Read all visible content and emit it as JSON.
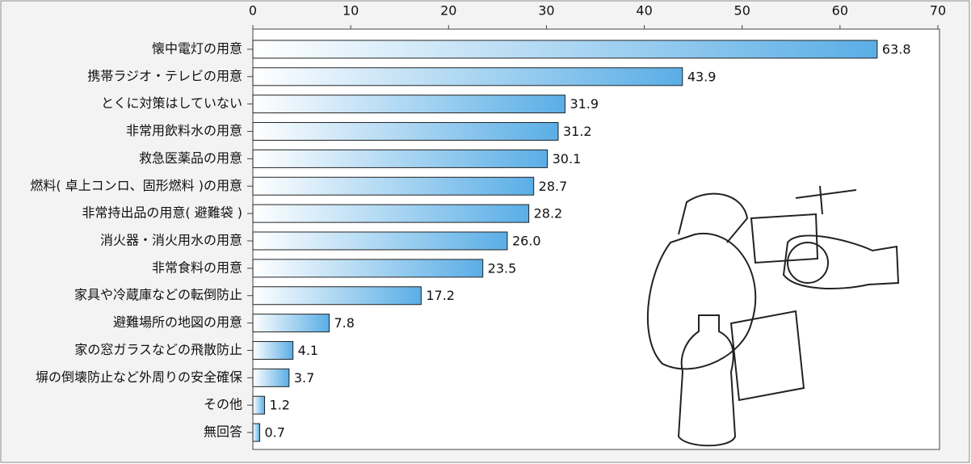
{
  "chart_data": {
    "type": "bar",
    "orientation": "horizontal",
    "categories": [
      "懐中電灯の用意",
      "携帯ラジオ・テレビの用意",
      "とくに対策はしていない",
      "非常用飲料水の用意",
      "救急医薬品の用意",
      "燃料( 卓上コンロ、固形燃料 )の用意",
      "非常持出品の用意( 避難袋 )",
      "消火器・消火用水の用意",
      "非常食料の用意",
      "家具や冷蔵庫などの転倒防止",
      "避難場所の地図の用意",
      "家の窓ガラスなどの飛散防止",
      "塀の倒壊防止など外周りの安全確保",
      "その他",
      "無回答"
    ],
    "values": [
      63.8,
      43.9,
      31.9,
      31.2,
      30.1,
      28.7,
      28.2,
      26.0,
      23.5,
      17.2,
      7.8,
      4.1,
      3.7,
      1.2,
      0.7
    ],
    "value_labels": [
      "63.8",
      "43.9",
      "31.9",
      "31.2",
      "30.1",
      "28.7",
      "28.2",
      "26.0",
      "23.5",
      "17.2",
      "7.8",
      "4.1",
      "3.7",
      "1.2",
      "0.7"
    ],
    "color": "#5aaee6",
    "xlim": [
      0,
      70
    ],
    "xticks": [
      0,
      10,
      20,
      30,
      40,
      50,
      60,
      70
    ]
  }
}
